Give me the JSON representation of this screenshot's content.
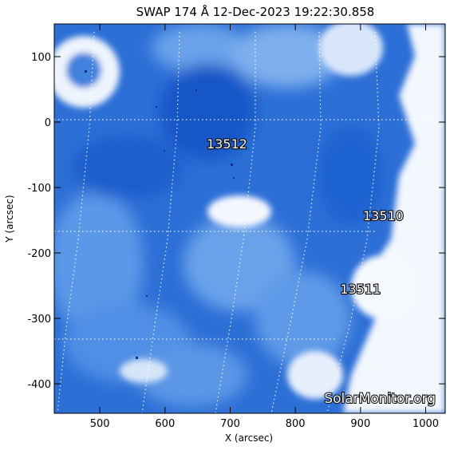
{
  "title": "SWAP 174 Å 12-Dec-2023 19:22:30.858",
  "x_axis": {
    "label": "X (arcsec)",
    "range": [
      430,
      1030
    ],
    "ticks": [
      500,
      600,
      700,
      800,
      900,
      1000
    ]
  },
  "y_axis": {
    "label": "Y (arcsec)",
    "range": [
      -445,
      150
    ],
    "ticks": [
      100,
      0,
      -100,
      -200,
      -300,
      -400
    ]
  },
  "active_regions": [
    {
      "id": "region-13512",
      "label": "13512",
      "x": 695,
      "y": -40
    },
    {
      "id": "region-13510",
      "label": "13510",
      "x": 935,
      "y": -150
    },
    {
      "id": "region-13511",
      "label": "13511",
      "x": 900,
      "y": -262
    }
  ],
  "watermark": "SolarMonitor.org",
  "colors": {
    "background": "#ffffff",
    "image_dark": "#1c63d2",
    "image_mid": "#4b8fe6",
    "image_light": "#c8dcf7",
    "grid": "#ffffff"
  }
}
